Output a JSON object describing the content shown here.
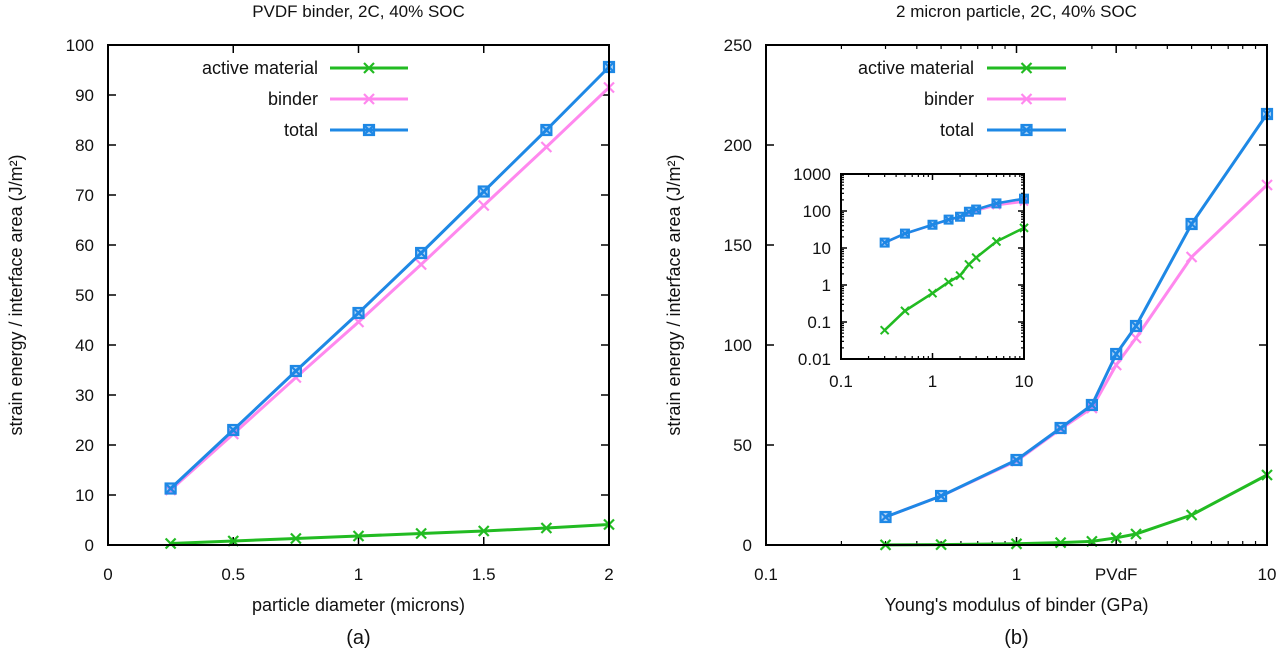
{
  "chart_data": [
    {
      "type": "line",
      "title": "PVDF binder, 2C, 40% SOC",
      "xlabel": "particle diameter (microns)",
      "ylabel": "strain energy / interface area (J/m²)",
      "caption": "(a)",
      "xlim": [
        0,
        2
      ],
      "ylim": [
        0,
        100
      ],
      "xscale": "linear",
      "yscale": "linear",
      "xticks": [
        0,
        0.5,
        1,
        1.5,
        2
      ],
      "xtick_labels": [
        "0",
        "0.5",
        "1",
        "1.5",
        "2"
      ],
      "yticks": [
        0,
        10,
        20,
        30,
        40,
        50,
        60,
        70,
        80,
        90,
        100
      ],
      "ytick_labels": [
        "0",
        "10",
        "20",
        "30",
        "40",
        "50",
        "60",
        "70",
        "80",
        "90",
        "100"
      ],
      "legend_position": "top-left",
      "x": [
        0.25,
        0.5,
        0.75,
        1.0,
        1.25,
        1.5,
        1.75,
        2.0
      ],
      "series": [
        {
          "name": "active material",
          "color": "#22bb22",
          "marker": "x",
          "values": [
            0.3,
            0.8,
            1.3,
            1.8,
            2.3,
            2.8,
            3.4,
            4.1
          ]
        },
        {
          "name": "binder",
          "color": "#ff88ee",
          "marker": "x",
          "values": [
            11.0,
            22.2,
            33.5,
            44.6,
            56.1,
            67.9,
            79.6,
            91.5
          ]
        },
        {
          "name": "total",
          "color": "#1e88e5",
          "marker": "box-x",
          "values": [
            11.3,
            23.0,
            34.8,
            46.4,
            58.4,
            70.7,
            83.0,
            95.6
          ]
        }
      ]
    },
    {
      "type": "line",
      "title": "2 micron particle, 2C, 40% SOC",
      "xlabel": "Young's modulus of binder (GPa)",
      "ylabel": "strain energy / interface area (J/m²)",
      "caption": "(b)",
      "xlim": [
        0.1,
        10
      ],
      "ylim": [
        0,
        250
      ],
      "xscale": "log",
      "yscale": "linear",
      "xticks": [
        0.1,
        1,
        2.5,
        10
      ],
      "xtick_labels": [
        "0.1",
        "1",
        "PVdF",
        "10"
      ],
      "yticks": [
        0,
        50,
        100,
        150,
        200,
        250
      ],
      "ytick_labels": [
        "0",
        "50",
        "100",
        "150",
        "200",
        "250"
      ],
      "legend_position": "top-left",
      "x": [
        0.3,
        0.5,
        1.0,
        1.5,
        2.0,
        2.5,
        3.0,
        5.0,
        10.0
      ],
      "series": [
        {
          "name": "active material",
          "color": "#22bb22",
          "marker": "x",
          "values": [
            0.06,
            0.2,
            0.6,
            1.2,
            1.8,
            3.6,
            5.5,
            15.0,
            35.0
          ]
        },
        {
          "name": "binder",
          "color": "#ff88ee",
          "marker": "x",
          "values": [
            14.0,
            24.5,
            42.0,
            58.0,
            68.5,
            90.0,
            103.5,
            144.0,
            180.0
          ]
        },
        {
          "name": "total",
          "color": "#1e88e5",
          "marker": "box-x",
          "values": [
            14.0,
            24.5,
            42.5,
            58.5,
            70.0,
            95.5,
            109.5,
            160.5,
            215.5
          ]
        }
      ],
      "inset": {
        "type": "line",
        "xscale": "log",
        "yscale": "log",
        "xlim": [
          0.1,
          10
        ],
        "ylim": [
          0.01,
          1000
        ],
        "xticks": [
          0.1,
          1,
          10
        ],
        "xtick_labels": [
          "0.1",
          "1",
          "10"
        ],
        "yticks": [
          0.01,
          0.1,
          1,
          10,
          100,
          1000
        ],
        "ytick_labels": [
          "0.01",
          "0.1",
          "1",
          "10",
          "100",
          "1000"
        ]
      }
    }
  ]
}
